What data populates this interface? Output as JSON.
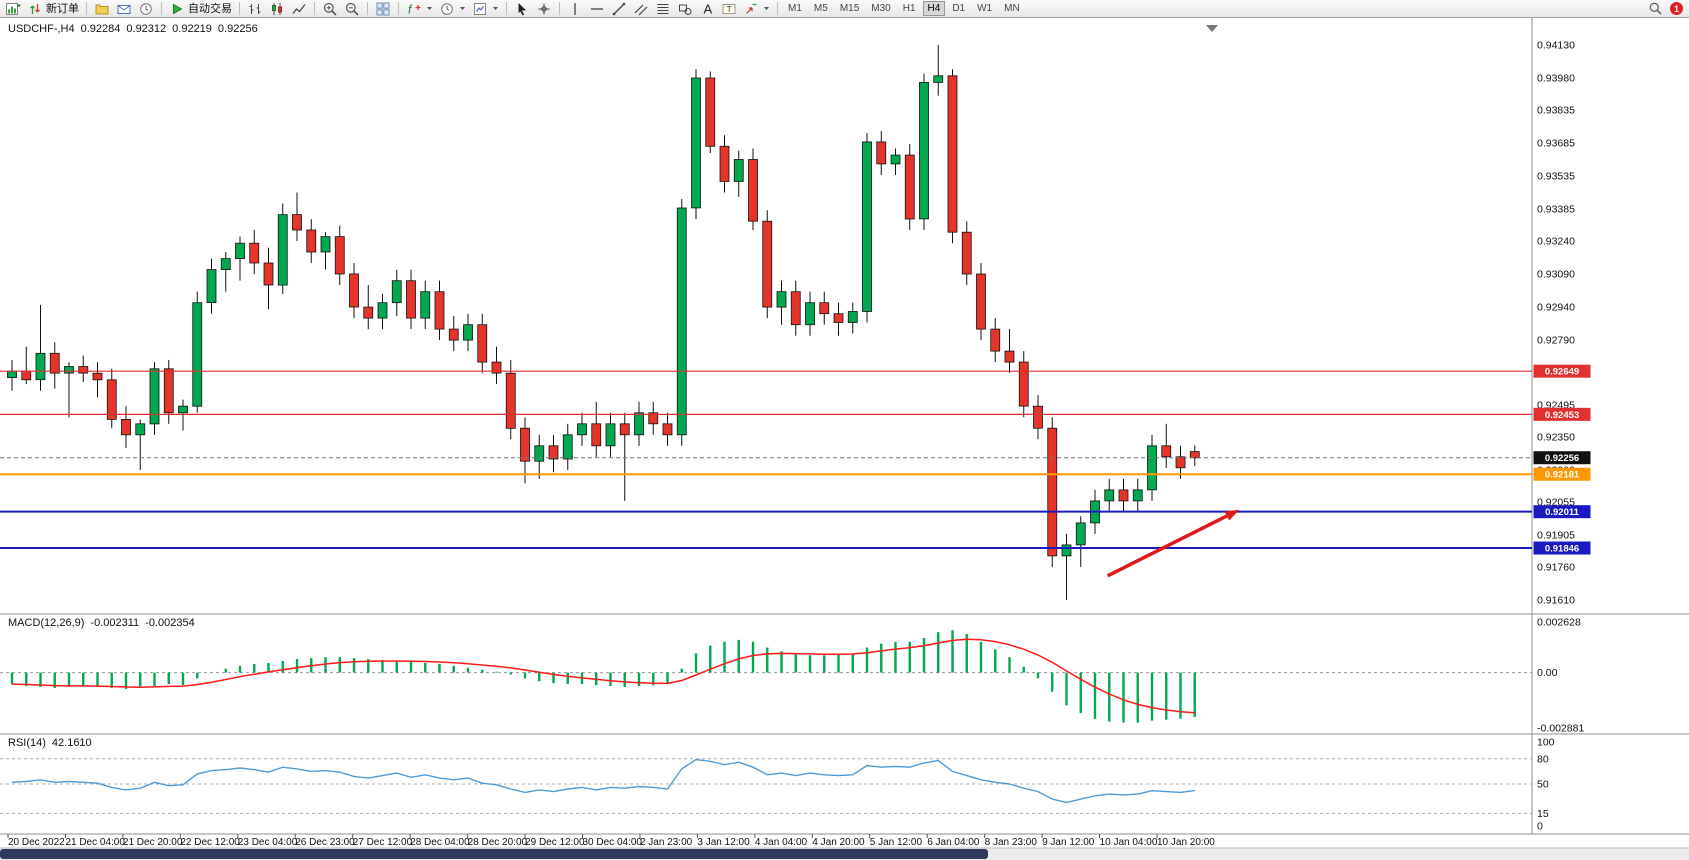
{
  "toolbar": {
    "items": [
      {
        "name": "new-chart",
        "icon": "chart-add"
      },
      {
        "name": "new-order",
        "icon": "order",
        "label": "新订单"
      },
      {
        "sep": true
      },
      {
        "name": "profiles",
        "icon": "profiles"
      },
      {
        "name": "market-watch",
        "icon": "mail"
      },
      {
        "name": "refresh",
        "icon": "clock"
      },
      {
        "sep": true
      },
      {
        "name": "auto-trading",
        "icon": "play",
        "label": "自动交易"
      },
      {
        "sep": true
      },
      {
        "name": "bar-chart-mode",
        "icon": "bars"
      },
      {
        "name": "candlestick-mode",
        "icon": "candles"
      },
      {
        "name": "line-chart-mode",
        "icon": "linechart"
      },
      {
        "sep": true
      },
      {
        "name": "zoom-in",
        "icon": "zoom-in"
      },
      {
        "name": "zoom-out",
        "icon": "zoom-out"
      },
      {
        "sep": true
      },
      {
        "name": "tile-windows",
        "icon": "tile"
      },
      {
        "sep": true
      },
      {
        "name": "indicators",
        "icon": "indicators",
        "caret": true
      },
      {
        "name": "periods",
        "icon": "clock",
        "caret": true
      },
      {
        "name": "templates",
        "icon": "templates",
        "caret": true
      },
      {
        "sep": true
      },
      {
        "name": "cursor-tool",
        "icon": "cursor"
      },
      {
        "name": "crosshair-tool",
        "icon": "crosshair"
      },
      {
        "sep": true
      },
      {
        "name": "vertical-line-tool",
        "icon": "vline"
      },
      {
        "name": "horizontal-line-tool",
        "icon": "hline"
      },
      {
        "name": "trendline-tool",
        "icon": "trendline"
      },
      {
        "name": "equidistant-channel-tool",
        "icon": "channel"
      },
      {
        "name": "fibonacci-tool",
        "icon": "fibo"
      },
      {
        "name": "shapes-tool",
        "icon": "shapes"
      },
      {
        "name": "text-tool",
        "icon": "text-a"
      },
      {
        "name": "label-tool",
        "icon": "text-t"
      },
      {
        "name": "arrows-tool",
        "icon": "arrows",
        "caret": true
      },
      {
        "sep": true
      }
    ],
    "timeframes": [
      "M1",
      "M5",
      "M15",
      "M30",
      "H1",
      "H4",
      "D1",
      "W1",
      "MN"
    ],
    "active_timeframe": "H4",
    "notification_badge": "1"
  },
  "chart": {
    "header": {
      "symbol": "USDCHF-,H4",
      "open": "0.92284",
      "high": "0.92312",
      "low": "0.92219",
      "close": "0.92256"
    }
  },
  "indicators": {
    "macd": {
      "label": "MACD(12,26,9)",
      "value_main": "-0.002311",
      "value_signal": "-0.002354"
    },
    "rsi": {
      "label": "RSI(14)",
      "value": "42.1610"
    }
  },
  "chart_data": {
    "type": "candlestick",
    "symbol": "USDCHF",
    "timeframe": "H4",
    "price_axis": {
      "max": 0.9413,
      "min": 0.9161,
      "ticks": [
        "0.94130",
        "0.93980",
        "0.93835",
        "0.93685",
        "0.93535",
        "0.93385",
        "0.93240",
        "0.93090",
        "0.92940",
        "0.92790",
        "0.92645",
        "0.92495",
        "0.92350",
        "0.92200",
        "0.92055",
        "0.91905",
        "0.91760",
        "0.91610"
      ]
    },
    "candles": [
      [
        0.9262,
        0.927,
        0.9256,
        0.9265
      ],
      [
        0.9265,
        0.9276,
        0.9259,
        0.9261
      ],
      [
        0.9261,
        0.9295,
        0.9256,
        0.9273
      ],
      [
        0.9273,
        0.9278,
        0.9257,
        0.9264
      ],
      [
        0.9264,
        0.9269,
        0.9244,
        0.9267
      ],
      [
        0.9267,
        0.9272,
        0.926,
        0.9264
      ],
      [
        0.9264,
        0.9269,
        0.9253,
        0.9261
      ],
      [
        0.9261,
        0.9266,
        0.9239,
        0.9243
      ],
      [
        0.9243,
        0.9249,
        0.923,
        0.9236
      ],
      [
        0.9236,
        0.9243,
        0.922,
        0.9241
      ],
      [
        0.9241,
        0.9269,
        0.9236,
        0.9266
      ],
      [
        0.9266,
        0.927,
        0.9241,
        0.9246
      ],
      [
        0.9246,
        0.9252,
        0.9238,
        0.9249
      ],
      [
        0.9249,
        0.9301,
        0.9246,
        0.9296
      ],
      [
        0.9296,
        0.9316,
        0.9291,
        0.9311
      ],
      [
        0.9311,
        0.9319,
        0.9301,
        0.9316
      ],
      [
        0.9316,
        0.9326,
        0.9306,
        0.9323
      ],
      [
        0.9323,
        0.9329,
        0.9309,
        0.9314
      ],
      [
        0.9314,
        0.9321,
        0.9293,
        0.9304
      ],
      [
        0.9304,
        0.9341,
        0.93,
        0.9336
      ],
      [
        0.9336,
        0.9346,
        0.9324,
        0.9329
      ],
      [
        0.9329,
        0.9334,
        0.9314,
        0.9319
      ],
      [
        0.9319,
        0.9328,
        0.9311,
        0.9326
      ],
      [
        0.9326,
        0.9331,
        0.9304,
        0.9309
      ],
      [
        0.9309,
        0.9314,
        0.9289,
        0.9294
      ],
      [
        0.9294,
        0.9304,
        0.9284,
        0.9289
      ],
      [
        0.9289,
        0.93,
        0.9284,
        0.9296
      ],
      [
        0.9296,
        0.9311,
        0.929,
        0.9306
      ],
      [
        0.9306,
        0.9311,
        0.9284,
        0.9289
      ],
      [
        0.9289,
        0.9306,
        0.9284,
        0.9301
      ],
      [
        0.9301,
        0.9306,
        0.9279,
        0.9284
      ],
      [
        0.9284,
        0.929,
        0.9274,
        0.9279
      ],
      [
        0.9279,
        0.9291,
        0.9274,
        0.9286
      ],
      [
        0.9286,
        0.9291,
        0.9264,
        0.9269
      ],
      [
        0.9269,
        0.9276,
        0.9259,
        0.9264
      ],
      [
        0.9264,
        0.927,
        0.9234,
        0.9239
      ],
      [
        0.9239,
        0.9244,
        0.9214,
        0.9224
      ],
      [
        0.9224,
        0.9236,
        0.9216,
        0.9231
      ],
      [
        0.9231,
        0.9236,
        0.9219,
        0.9225
      ],
      [
        0.9225,
        0.9241,
        0.922,
        0.9236
      ],
      [
        0.9236,
        0.9246,
        0.9231,
        0.9241
      ],
      [
        0.9241,
        0.9251,
        0.9226,
        0.9231
      ],
      [
        0.9231,
        0.9246,
        0.9226,
        0.9241
      ],
      [
        0.9241,
        0.9246,
        0.9206,
        0.9236
      ],
      [
        0.9236,
        0.9251,
        0.9231,
        0.9246
      ],
      [
        0.9246,
        0.9251,
        0.9236,
        0.9241
      ],
      [
        0.9241,
        0.9246,
        0.9231,
        0.9236
      ],
      [
        0.9236,
        0.9343,
        0.9231,
        0.9339
      ],
      [
        0.9339,
        0.9402,
        0.9334,
        0.9398
      ],
      [
        0.9398,
        0.9401,
        0.9364,
        0.9367
      ],
      [
        0.9367,
        0.9372,
        0.9346,
        0.9351
      ],
      [
        0.9351,
        0.9365,
        0.9344,
        0.9361
      ],
      [
        0.9361,
        0.9366,
        0.9329,
        0.9333
      ],
      [
        0.9333,
        0.9338,
        0.9289,
        0.9294
      ],
      [
        0.9294,
        0.9306,
        0.9286,
        0.9301
      ],
      [
        0.9301,
        0.9306,
        0.9281,
        0.9286
      ],
      [
        0.9286,
        0.9301,
        0.9281,
        0.9296
      ],
      [
        0.9296,
        0.9301,
        0.9286,
        0.9291
      ],
      [
        0.9291,
        0.9296,
        0.9281,
        0.9287
      ],
      [
        0.9287,
        0.9296,
        0.9282,
        0.9292
      ],
      [
        0.9292,
        0.9373,
        0.9287,
        0.9369
      ],
      [
        0.9369,
        0.9374,
        0.9354,
        0.9359
      ],
      [
        0.9359,
        0.9366,
        0.9354,
        0.9363
      ],
      [
        0.9363,
        0.9368,
        0.9329,
        0.9334
      ],
      [
        0.9334,
        0.94,
        0.9329,
        0.9396
      ],
      [
        0.9396,
        0.9413,
        0.939,
        0.9399
      ],
      [
        0.9399,
        0.9402,
        0.9323,
        0.9328
      ],
      [
        0.9328,
        0.9333,
        0.9304,
        0.9309
      ],
      [
        0.9309,
        0.9314,
        0.9279,
        0.9284
      ],
      [
        0.9284,
        0.9289,
        0.9269,
        0.9274
      ],
      [
        0.9274,
        0.9284,
        0.9264,
        0.9269
      ],
      [
        0.9269,
        0.9274,
        0.9244,
        0.9249
      ],
      [
        0.9249,
        0.9254,
        0.9234,
        0.9239
      ],
      [
        0.9239,
        0.9244,
        0.9176,
        0.9181
      ],
      [
        0.9181,
        0.9191,
        0.9161,
        0.9186
      ],
      [
        0.9186,
        0.9199,
        0.9176,
        0.9196
      ],
      [
        0.9196,
        0.9211,
        0.9191,
        0.9206
      ],
      [
        0.9206,
        0.9216,
        0.9201,
        0.9211
      ],
      [
        0.9211,
        0.9216,
        0.9201,
        0.9206
      ],
      [
        0.9206,
        0.9216,
        0.9201,
        0.9211
      ],
      [
        0.9211,
        0.9236,
        0.9206,
        0.9231
      ],
      [
        0.9231,
        0.9241,
        0.9221,
        0.9226
      ],
      [
        0.9226,
        0.9231,
        0.9216,
        0.9221
      ],
      [
        0.92284,
        0.92312,
        0.92219,
        0.92256
      ]
    ],
    "levels": [
      {
        "price": 0.92649,
        "label": "0.92649",
        "color": "#E03030",
        "width": 1.2,
        "type": "resistance"
      },
      {
        "price": 0.92453,
        "label": "0.92453",
        "color": "#E03030",
        "width": 1.2,
        "type": "resistance"
      },
      {
        "price": 0.92181,
        "label": "0.92181",
        "color": "#FF9800",
        "width": 2,
        "type": "pivot"
      },
      {
        "price": 0.92011,
        "label": "0.92011",
        "color": "#1A1AC0",
        "width": 2,
        "type": "support"
      },
      {
        "price": 0.91846,
        "label": "0.91846",
        "color": "#1A1AC0",
        "width": 2,
        "type": "support"
      }
    ],
    "current_price": {
      "value": 0.92256,
      "label": "0.92256"
    },
    "time_labels": [
      "20 Dec 2022",
      "21 Dec 04:00",
      "21 Dec 20:00",
      "22 Dec 12:00",
      "23 Dec 04:00",
      "26 Dec 23:00",
      "27 Dec 12:00",
      "28 Dec 04:00",
      "28 Dec 20:00",
      "29 Dec 12:00",
      "30 Dec 04:00",
      "2 Jan 23:00",
      "3 Jan 12:00",
      "4 Jan 04:00",
      "4 Jan 20:00",
      "5 Jan 12:00",
      "6 Jan 04:00",
      "8 Jan 23:00",
      "9 Jan 12:00",
      "10 Jan 04:00",
      "10 Jan 20:00"
    ],
    "macd": {
      "axis_max": 0.002628,
      "axis_min": -0.002881,
      "axis_labels": [
        "0.002628",
        "0.00",
        "-0.002881"
      ],
      "unit": 0.001,
      "signal": "ema9-of-histogram",
      "histogram": [
        -0.6,
        -0.7,
        -0.75,
        -0.8,
        -0.75,
        -0.7,
        -0.75,
        -0.8,
        -0.85,
        -0.8,
        -0.7,
        -0.6,
        -0.65,
        -0.3,
        0.0,
        0.2,
        0.35,
        0.45,
        0.5,
        0.6,
        0.7,
        0.75,
        0.8,
        0.8,
        0.75,
        0.7,
        0.65,
        0.6,
        0.55,
        0.5,
        0.45,
        0.35,
        0.25,
        0.15,
        0.05,
        -0.1,
        -0.3,
        -0.45,
        -0.55,
        -0.6,
        -0.6,
        -0.65,
        -0.7,
        -0.75,
        -0.7,
        -0.65,
        -0.6,
        0.2,
        1.0,
        1.4,
        1.6,
        1.7,
        1.6,
        1.3,
        1.1,
        0.95,
        0.9,
        0.9,
        0.95,
        1.0,
        1.3,
        1.5,
        1.6,
        1.6,
        1.8,
        2.1,
        2.2,
        2.0,
        1.6,
        1.2,
        0.8,
        0.3,
        -0.3,
        -1.0,
        -1.7,
        -2.1,
        -2.4,
        -2.55,
        -2.6,
        -2.6,
        -2.5,
        -2.45,
        -2.4,
        -2.31
      ]
    },
    "rsi": {
      "axis_labels": [
        "100",
        "80",
        "50",
        "15",
        "0"
      ],
      "axis_values": [
        100,
        80,
        50,
        15,
        0
      ],
      "levels": [
        80,
        50,
        15
      ],
      "values": [
        52,
        53,
        55,
        52,
        53,
        52,
        51,
        46,
        43,
        45,
        52,
        48,
        49,
        62,
        66,
        67,
        69,
        67,
        64,
        70,
        68,
        65,
        66,
        64,
        59,
        57,
        60,
        63,
        58,
        61,
        57,
        55,
        57,
        51,
        49,
        44,
        40,
        43,
        41,
        44,
        46,
        43,
        46,
        45,
        47,
        46,
        44,
        68,
        79,
        77,
        73,
        76,
        70,
        61,
        63,
        60,
        63,
        61,
        60,
        61,
        72,
        70,
        71,
        70,
        75,
        78,
        65,
        60,
        55,
        52,
        50,
        45,
        41,
        32,
        28,
        32,
        36,
        38,
        37,
        38,
        42,
        41,
        40,
        42.16
      ]
    },
    "annotations": [
      {
        "type": "arrow",
        "color": "#E01818",
        "from": {
          "x_frac": 0.723,
          "price": 0.9172
        },
        "to": {
          "x_frac": 0.809,
          "price": 0.9202
        }
      }
    ]
  },
  "colors": {
    "bull": "#00A94F",
    "bear": "#E5342A",
    "wick": "#111111",
    "macd_histogram": "#00A94F",
    "macd_signal": "#FF1A1A",
    "rsi_line": "#4F9BD9",
    "current_price_badge": "#111111",
    "scrollbar_thumb": "#2E3A5E"
  }
}
